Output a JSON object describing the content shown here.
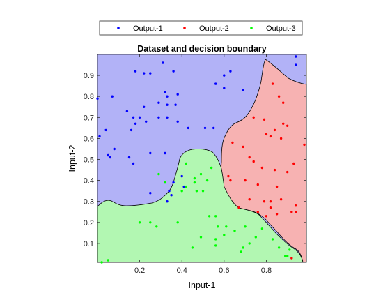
{
  "chart_data": {
    "type": "scatter",
    "title": "Dataset and decision boundary",
    "xlabel": "Input-1",
    "ylabel": "Input-2",
    "xlim": [
      0.0,
      0.99
    ],
    "ylim": [
      0.01,
      1.0
    ],
    "xticks": [
      0.2,
      0.4,
      0.6,
      0.8
    ],
    "yticks": [
      0.1,
      0.2,
      0.3,
      0.4,
      0.5,
      0.6,
      0.7,
      0.8,
      0.9
    ],
    "xtick_labels": [
      "0.2",
      "0.4",
      "0.6",
      "0.8"
    ],
    "ytick_labels": [
      "0.1",
      "0.2",
      "0.3",
      "0.4",
      "0.5",
      "0.6",
      "0.7",
      "0.8",
      "0.9"
    ],
    "grid": false,
    "legend_position": "top-center",
    "legend_orientation": "horizontal",
    "background_color": "#ffffff",
    "series": [
      {
        "name": "Output-1",
        "color": "#0000ff",
        "region_color": "#b2b2f7",
        "x": [
          0.0,
          0.07,
          0.04,
          0.18,
          0.22,
          0.25,
          0.31,
          0.33,
          0.36,
          0.56,
          0.6,
          0.63,
          0.94,
          0.94,
          0.6,
          0.69,
          0.38,
          0.32,
          0.33,
          0.37,
          0.14,
          0.29,
          0.22,
          0.17,
          0.2,
          0.23,
          0.18,
          0.16,
          0.33,
          0.38,
          0.43,
          0.51,
          0.55,
          0.05,
          0.06,
          0.08,
          0.15,
          0.01,
          0.25,
          0.32,
          0.29,
          0.17,
          0.34,
          0.36,
          0.4,
          0.35,
          0.33,
          0.25,
          0.41
        ],
        "y": [
          0.79,
          0.8,
          0.64,
          0.92,
          0.91,
          0.91,
          0.96,
          0.8,
          0.92,
          0.86,
          0.9,
          0.92,
          0.99,
          0.95,
          0.84,
          0.83,
          0.81,
          0.82,
          0.76,
          0.76,
          0.73,
          0.77,
          0.75,
          0.7,
          0.7,
          0.68,
          0.67,
          0.64,
          0.7,
          0.68,
          0.65,
          0.65,
          0.65,
          0.52,
          0.51,
          0.55,
          0.51,
          0.61,
          0.53,
          0.53,
          0.7,
          0.48,
          0.35,
          0.39,
          0.42,
          0.33,
          0.3,
          0.34,
          0.37
        ]
      },
      {
        "name": "Output-2",
        "color": "#ff0000",
        "region_color": "#f7b2b2",
        "x": [
          0.98,
          0.86,
          0.88,
          0.83,
          0.74,
          0.79,
          0.88,
          0.84,
          0.9,
          0.82,
          0.8,
          0.87,
          0.93,
          0.72,
          0.64,
          0.69,
          0.74,
          0.78,
          0.84,
          0.9,
          0.63,
          0.62,
          0.7,
          0.76,
          0.85,
          0.72,
          0.79,
          0.87,
          0.67,
          0.76,
          0.8,
          0.82,
          0.85,
          0.94,
          0.92,
          0.94,
          0.82,
          0.92
        ],
        "y": [
          0.57,
          0.8,
          0.77,
          0.86,
          0.7,
          0.69,
          0.67,
          0.64,
          0.66,
          0.61,
          0.62,
          0.6,
          0.48,
          0.51,
          0.58,
          0.56,
          0.49,
          0.46,
          0.45,
          0.44,
          0.4,
          0.42,
          0.4,
          0.38,
          0.37,
          0.31,
          0.3,
          0.31,
          0.27,
          0.25,
          0.23,
          0.27,
          0.24,
          0.25,
          0.25,
          0.28,
          0.3,
          0.03
        ]
      },
      {
        "name": "Output-3",
        "color": "#00ff00",
        "region_color": "#b2f7b2",
        "x": [
          0.02,
          0.05,
          0.2,
          0.25,
          0.28,
          0.42,
          0.32,
          0.29,
          0.46,
          0.46,
          0.49,
          0.54,
          0.52,
          0.47,
          0.5,
          0.42,
          0.4,
          0.38,
          0.56,
          0.53,
          0.56,
          0.49,
          0.6,
          0.57,
          0.61,
          0.65,
          0.7,
          0.72,
          0.68,
          0.75,
          0.78,
          0.83,
          0.86,
          0.91,
          0.89,
          0.9,
          0.56,
          0.69,
          0.45
        ],
        "y": [
          0.01,
          0.02,
          0.2,
          0.2,
          0.18,
          0.48,
          0.39,
          0.43,
          0.41,
          0.39,
          0.43,
          0.46,
          0.4,
          0.35,
          0.35,
          0.37,
          0.35,
          0.2,
          0.23,
          0.23,
          0.12,
          0.13,
          0.14,
          0.18,
          0.18,
          0.16,
          0.18,
          0.1,
          0.06,
          0.13,
          0.17,
          0.12,
          0.08,
          0.07,
          0.04,
          0.04,
          0.09,
          0.08,
          0.08
        ]
      }
    ]
  }
}
